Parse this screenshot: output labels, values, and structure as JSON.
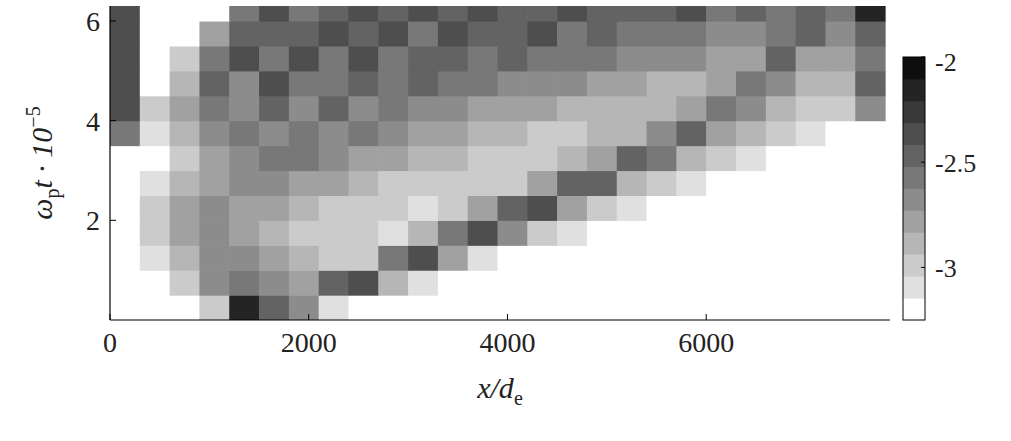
{
  "chart_data": {
    "type": "heatmap",
    "xlabel": [
      "x/d",
      "e"
    ],
    "ylabel": [
      "ω",
      "p",
      "t · 10",
      "−5"
    ],
    "xlim": [
      0,
      7850
    ],
    "ylim": [
      0,
      6.3
    ],
    "xticks": [
      0,
      2000,
      4000,
      6000
    ],
    "yticks": [
      2,
      4,
      6
    ],
    "x": [
      150,
      450,
      750,
      1050,
      1350,
      1650,
      1950,
      2250,
      2550,
      2850,
      3150,
      3450,
      3750,
      4050,
      4350,
      4650,
      4950,
      5250,
      5550,
      5850,
      6150,
      6450,
      6750,
      7050,
      7350,
      7650
    ],
    "y": [
      0.25,
      0.75,
      1.25,
      1.75,
      2.25,
      2.75,
      3.25,
      3.75,
      4.25,
      4.75,
      5.25,
      5.75,
      6.25
    ],
    "cells": [
      [
        -3.25,
        -3.25,
        -3.25,
        -3.0,
        -2.2,
        -2.5,
        -2.7,
        -3.1,
        -3.25,
        -3.25,
        -3.25,
        -3.25,
        -3.25,
        -3.25,
        -3.25,
        -3.25,
        -3.25,
        -3.25,
        -3.25,
        -3.25,
        -3.25,
        -3.25,
        -3.25,
        -3.25,
        -3.25,
        -3.25
      ],
      [
        -3.25,
        -3.25,
        -3.0,
        -2.7,
        -2.6,
        -2.7,
        -2.8,
        -2.5,
        -2.4,
        -2.9,
        -3.1,
        -3.25,
        -3.25,
        -3.25,
        -3.25,
        -3.25,
        -3.25,
        -3.25,
        -3.25,
        -3.25,
        -3.25,
        -3.25,
        -3.25,
        -3.25,
        -3.25,
        -3.25
      ],
      [
        -3.25,
        -3.1,
        -2.9,
        -2.7,
        -2.7,
        -2.8,
        -2.9,
        -3.0,
        -3.0,
        -2.6,
        -2.4,
        -2.8,
        -3.1,
        -3.25,
        -3.25,
        -3.25,
        -3.25,
        -3.25,
        -3.25,
        -3.25,
        -3.25,
        -3.25,
        -3.25,
        -3.25,
        -3.25,
        -3.25
      ],
      [
        -3.25,
        -3.0,
        -2.8,
        -2.7,
        -2.8,
        -2.9,
        -3.0,
        -3.0,
        -3.0,
        -3.1,
        -2.9,
        -2.6,
        -2.4,
        -2.7,
        -3.0,
        -3.1,
        -3.25,
        -3.25,
        -3.25,
        -3.25,
        -3.25,
        -3.25,
        -3.25,
        -3.25,
        -3.25,
        -3.25
      ],
      [
        -3.25,
        -3.0,
        -2.8,
        -2.7,
        -2.8,
        -2.8,
        -2.9,
        -3.0,
        -3.0,
        -3.0,
        -3.1,
        -3.0,
        -2.8,
        -2.5,
        -2.4,
        -2.8,
        -3.0,
        -3.1,
        -3.25,
        -3.25,
        -3.25,
        -3.25,
        -3.25,
        -3.25,
        -3.25,
        -3.25
      ],
      [
        -3.25,
        -3.1,
        -2.9,
        -2.8,
        -2.7,
        -2.7,
        -2.8,
        -2.8,
        -2.9,
        -3.0,
        -3.0,
        -3.0,
        -3.0,
        -3.0,
        -2.8,
        -2.5,
        -2.5,
        -2.9,
        -3.0,
        -3.1,
        -3.25,
        -3.25,
        -3.25,
        -3.25,
        -3.25,
        -3.25
      ],
      [
        -3.25,
        -3.2,
        -3.0,
        -2.8,
        -2.7,
        -2.6,
        -2.6,
        -2.7,
        -2.8,
        -2.8,
        -2.9,
        -2.9,
        -3.0,
        -3.0,
        -3.0,
        -2.9,
        -2.8,
        -2.5,
        -2.6,
        -2.9,
        -3.0,
        -3.1,
        -3.25,
        -3.25,
        -3.25,
        -3.25
      ],
      [
        -2.6,
        -3.1,
        -2.9,
        -2.7,
        -2.6,
        -2.7,
        -2.6,
        -2.7,
        -2.6,
        -2.7,
        -2.8,
        -2.8,
        -2.9,
        -2.9,
        -3.0,
        -3.0,
        -2.9,
        -2.9,
        -2.7,
        -2.5,
        -2.8,
        -2.9,
        -3.0,
        -3.1,
        -3.2,
        -3.25
      ],
      [
        -2.4,
        -3.0,
        -2.8,
        -2.6,
        -2.7,
        -2.5,
        -2.7,
        -2.5,
        -2.7,
        -2.6,
        -2.7,
        -2.7,
        -2.8,
        -2.8,
        -2.8,
        -2.9,
        -2.9,
        -2.9,
        -2.9,
        -2.8,
        -2.6,
        -2.7,
        -2.9,
        -3.0,
        -3.0,
        -2.7
      ],
      [
        -2.4,
        -3.2,
        -2.9,
        -2.5,
        -2.7,
        -2.4,
        -2.6,
        -2.6,
        -2.5,
        -2.6,
        -2.5,
        -2.6,
        -2.6,
        -2.7,
        -2.7,
        -2.7,
        -2.8,
        -2.8,
        -2.9,
        -2.9,
        -2.8,
        -2.6,
        -2.7,
        -2.9,
        -2.9,
        -2.5
      ],
      [
        -2.4,
        -3.25,
        -3.0,
        -2.6,
        -2.4,
        -2.6,
        -2.4,
        -2.6,
        -2.4,
        -2.6,
        -2.5,
        -2.5,
        -2.6,
        -2.5,
        -2.6,
        -2.6,
        -2.6,
        -2.7,
        -2.7,
        -2.7,
        -2.8,
        -2.8,
        -2.5,
        -2.8,
        -2.8,
        -2.6
      ],
      [
        -2.4,
        -3.25,
        -3.25,
        -2.8,
        -2.5,
        -2.5,
        -2.5,
        -2.4,
        -2.5,
        -2.4,
        -2.6,
        -2.4,
        -2.5,
        -2.5,
        -2.4,
        -2.6,
        -2.5,
        -2.6,
        -2.6,
        -2.6,
        -2.7,
        -2.7,
        -2.6,
        -2.5,
        -2.7,
        -2.5
      ],
      [
        -2.4,
        -3.25,
        -3.25,
        -3.25,
        -2.6,
        -2.4,
        -2.6,
        -2.5,
        -2.4,
        -2.5,
        -2.4,
        -2.5,
        -2.4,
        -2.5,
        -2.5,
        -2.4,
        -2.5,
        -2.5,
        -2.5,
        -2.4,
        -2.6,
        -2.5,
        -2.6,
        -2.5,
        -2.6,
        -2.2
      ]
    ],
    "colorbar": {
      "range": [
        -3.25,
        -2
      ],
      "ticks": [
        -3,
        -2.5,
        -2
      ]
    }
  }
}
